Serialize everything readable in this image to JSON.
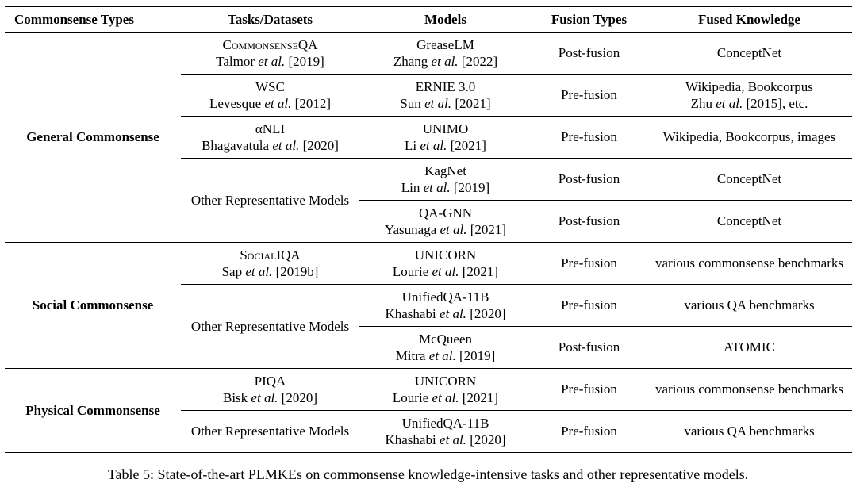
{
  "headers": [
    "Commonsense Types",
    "Tasks/Datasets",
    "Models",
    "Fusion Types",
    "Fused Knowledge"
  ],
  "groups": [
    {
      "type": "General Commonsense",
      "rows": [
        {
          "task": "CommonsenseQA",
          "task_cite": "Talmor et al. [2019]",
          "model": "GreaseLM",
          "model_cite": "Zhang et al. [2022]",
          "fusion": "Post-fusion",
          "knowledge": "ConceptNet",
          "knowledge2": ""
        },
        {
          "task": "WSC",
          "task_cite": "Levesque et al. [2012]",
          "model": "ERNIE 3.0",
          "model_cite": "Sun et al. [2021]",
          "fusion": "Pre-fusion",
          "knowledge": "Wikipedia, Bookcorpus",
          "knowledge2": "Zhu et al. [2015], etc."
        },
        {
          "task": "αNLI",
          "task_cite": "Bhagavatula et al. [2020]",
          "model": "UNIMO",
          "model_cite": "Li et al. [2021]",
          "fusion": "Pre-fusion",
          "knowledge": "Wikipedia, Bookcorpus, images",
          "knowledge2": ""
        },
        {
          "task": "Other Representative Models",
          "task_cite": "",
          "model": "KagNet",
          "model_cite": "Lin et al. [2019]",
          "fusion": "Post-fusion",
          "knowledge": "ConceptNet",
          "knowledge2": ""
        },
        {
          "task": "",
          "task_cite": "",
          "model": "QA-GNN",
          "model_cite": "Yasunaga et al. [2021]",
          "fusion": "Post-fusion",
          "knowledge": "ConceptNet",
          "knowledge2": ""
        }
      ]
    },
    {
      "type": "Social Commonsense",
      "rows": [
        {
          "task": "SocialIQA",
          "task_cite": "Sap et al. [2019b]",
          "model": "UNICORN",
          "model_cite": "Lourie et al. [2021]",
          "fusion": "Pre-fusion",
          "knowledge": "various commonsense benchmarks",
          "knowledge2": ""
        },
        {
          "task": "Other Representative Models",
          "task_cite": "",
          "model": "UnifiedQA-11B",
          "model_cite": "Khashabi et al. [2020]",
          "fusion": "Pre-fusion",
          "knowledge": "various QA benchmarks",
          "knowledge2": ""
        },
        {
          "task": "",
          "task_cite": "",
          "model": "McQueen",
          "model_cite": "Mitra et al. [2019]",
          "fusion": "Post-fusion",
          "knowledge": "ATOMIC",
          "knowledge2": ""
        }
      ]
    },
    {
      "type": "Physical Commonsense",
      "rows": [
        {
          "task": "PIQA",
          "task_cite": "Bisk et al. [2020]",
          "model": "UNICORN",
          "model_cite": "Lourie et al. [2021]",
          "fusion": "Pre-fusion",
          "knowledge": "various commonsense benchmarks",
          "knowledge2": ""
        },
        {
          "task": "Other Representative Models",
          "task_cite": "",
          "model": "UnifiedQA-11B",
          "model_cite": "Khashabi et al. [2020]",
          "fusion": "Pre-fusion",
          "knowledge": "various QA benchmarks",
          "knowledge2": ""
        }
      ]
    }
  ],
  "caption": "Table 5: State-of-the-art PLMKEs on commonsense knowledge-intensive tasks and other representative models."
}
